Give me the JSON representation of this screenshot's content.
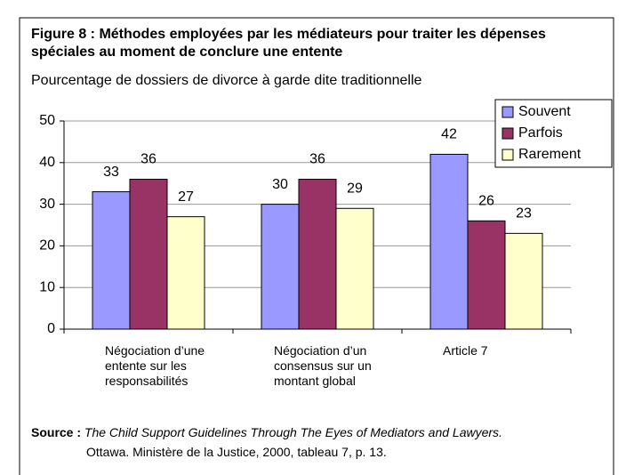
{
  "chart_data": {
    "type": "bar",
    "title": "Figure 8 : Méthodes employées par les médiateurs pour traiter les dépenses spéciales au moment de conclure une entente",
    "subtitle": "Pourcentage de dossiers de divorce à garde dite traditionnelle",
    "categories": [
      "Négociation d’une entente sur les responsabilités",
      "Négociation d’un consensus sur un montant global",
      "Article 7"
    ],
    "series": [
      {
        "name": "Souvent",
        "color": "#9999ff",
        "values": [
          33,
          30,
          42
        ]
      },
      {
        "name": "Parfois",
        "color": "#993366",
        "values": [
          36,
          36,
          26
        ]
      },
      {
        "name": "Rarement",
        "color": "#ffffcc",
        "values": [
          27,
          29,
          23
        ]
      }
    ],
    "ylim": [
      0,
      50
    ],
    "yticks": [
      0,
      10,
      20,
      30,
      40,
      50
    ],
    "grid": true,
    "legend": "top-right",
    "source_label": "Source :",
    "source_title": "The Child Support Guidelines Through The Eyes of Mediators and Lawyers.",
    "source_detail": "Ottawa. Ministère de la Justice, 2000, tableau 7, p. 13."
  }
}
